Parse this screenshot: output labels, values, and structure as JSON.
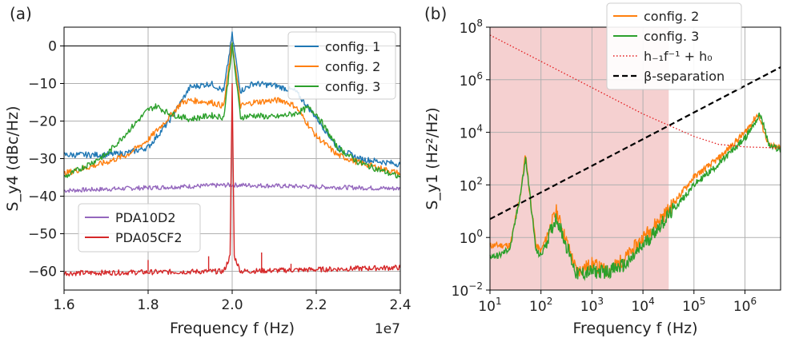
{
  "chart_data": [
    {
      "type": "line",
      "panel_label": "(a)",
      "xlabel": "Frequency f (Hz)",
      "x_offset_text": "1e7",
      "ylabel": "S_y4 (dBc/Hz)",
      "xlim": [
        1.6,
        2.4
      ],
      "ylim": [
        -65,
        5
      ],
      "x_ticks": [
        1.6,
        1.8,
        2.0,
        2.2,
        2.4
      ],
      "x_tick_labels": [
        "1.6",
        "1.8",
        "2.0",
        "2.2",
        "2.4"
      ],
      "y_ticks": [
        0,
        -10,
        -20,
        -30,
        -40,
        -50,
        -60
      ],
      "y_tick_labels": [
        "0",
        "−10",
        "−20",
        "−30",
        "−40",
        "−50",
        "−60"
      ],
      "grid": true,
      "legend_upper": {
        "placement": "top-right",
        "entries": [
          "config. 1",
          "config. 2",
          "config. 3"
        ]
      },
      "legend_lower": {
        "placement": "lower-left",
        "entries": [
          "PDA10D2",
          "PDA05CF2"
        ]
      },
      "colors": {
        "config1": "#1f77b4",
        "config2": "#ff7f0e",
        "config3": "#2ca02c",
        "PDA10D2": "#9467bd",
        "PDA05CF2": "#d62728"
      },
      "series": [
        {
          "name": "config. 1",
          "color": "#1f77b4",
          "x": [
            1.6,
            1.7,
            1.75,
            1.8,
            1.85,
            1.9,
            1.95,
            1.98,
            2.0,
            2.02,
            2.05,
            2.1,
            2.15,
            2.2,
            2.25,
            2.3,
            2.4
          ],
          "y": [
            -29,
            -29,
            -28.5,
            -27,
            -20,
            -11,
            -10,
            -12,
            3,
            -12,
            -10,
            -10.5,
            -12,
            -19,
            -27,
            -30,
            -31.5
          ]
        },
        {
          "name": "config. 2",
          "color": "#ff7f0e",
          "x": [
            1.6,
            1.7,
            1.75,
            1.8,
            1.85,
            1.88,
            1.9,
            1.95,
            1.98,
            2.0,
            2.02,
            2.05,
            2.1,
            2.12,
            2.15,
            2.2,
            2.25,
            2.3,
            2.4
          ],
          "y": [
            -34,
            -31,
            -29,
            -25,
            -19,
            -15,
            -14.5,
            -15,
            -16,
            1,
            -16,
            -15,
            -14.5,
            -14.5,
            -16,
            -24,
            -29,
            -31,
            -34
          ]
        },
        {
          "name": "config. 3",
          "color": "#2ca02c",
          "x": [
            1.6,
            1.7,
            1.75,
            1.8,
            1.82,
            1.85,
            1.9,
            1.95,
            1.98,
            2.0,
            2.02,
            2.05,
            2.1,
            2.15,
            2.18,
            2.2,
            2.25,
            2.3,
            2.4
          ],
          "y": [
            -35,
            -29,
            -23,
            -17,
            -16,
            -18,
            -19.5,
            -18.5,
            -19,
            0,
            -19,
            -18.5,
            -19,
            -18,
            -16.5,
            -18,
            -27,
            -31,
            -35
          ]
        },
        {
          "name": "PDA10D2",
          "color": "#9467bd",
          "x": [
            1.6,
            2.0,
            2.4
          ],
          "y": [
            -38.5,
            -37,
            -38
          ]
        },
        {
          "name": "PDA05CF2",
          "color": "#d62728",
          "x": [
            1.6,
            1.98,
            1.995,
            2.0,
            2.005,
            2.02,
            2.4
          ],
          "y": [
            -60.5,
            -60,
            -56,
            -10,
            -56,
            -60,
            -59
          ]
        }
      ],
      "red_spurs": [
        {
          "x": 1.8,
          "y": -57
        },
        {
          "x": 1.944,
          "y": -56
        },
        {
          "x": 2.07,
          "y": -55
        },
        {
          "x": 2.14,
          "y": -58
        }
      ]
    },
    {
      "type": "line",
      "panel_label": "(b)",
      "xlabel": "Frequency f (Hz)",
      "ylabel": "S_y1 (Hz²/Hz)",
      "xscale": "log",
      "yscale": "log",
      "xlim": [
        10,
        5000000
      ],
      "ylim": [
        0.01,
        100000000
      ],
      "x_ticks": [
        10,
        100,
        1000,
        10000,
        100000,
        1000000
      ],
      "x_tick_labels": [
        [
          "10",
          "1"
        ],
        [
          "10",
          "2"
        ],
        [
          "10",
          "3"
        ],
        [
          "10",
          "4"
        ],
        [
          "10",
          "5"
        ],
        [
          "10",
          "6"
        ]
      ],
      "y_ticks": [
        0.01,
        1,
        100,
        10000,
        1000000,
        100000000
      ],
      "y_tick_labels": [
        [
          "10",
          "−2"
        ],
        [
          "10",
          "0"
        ],
        [
          "10",
          "2"
        ],
        [
          "10",
          "4"
        ],
        [
          "10",
          "6"
        ],
        [
          "10",
          "8"
        ]
      ],
      "grid": true,
      "legend": {
        "placement": "top-center",
        "entries": [
          "config. 2",
          "config. 3",
          "h₋₁f⁻¹ + h₀",
          "β-separation"
        ]
      },
      "shaded_region": {
        "x": [
          10,
          32000
        ],
        "color": "#f3c4c4"
      },
      "series": [
        {
          "name": "config. 2",
          "color": "#ff7f0e",
          "x": [
            10,
            15,
            25,
            40,
            50,
            60,
            80,
            100,
            200,
            500,
            1000,
            2000,
            5000,
            10000,
            30000,
            100000,
            300000,
            1000000,
            1800000,
            3000000,
            5000000
          ],
          "y": [
            0.5,
            0.5,
            0.5,
            50,
            1500,
            50,
            0.5,
            0.3,
            10,
            0.05,
            0.1,
            0.05,
            0.2,
            1,
            10,
            200,
            1000,
            10000,
            50000,
            3000,
            2500
          ]
        },
        {
          "name": "config. 3",
          "color": "#2ca02c",
          "x": [
            10,
            15,
            25,
            40,
            50,
            60,
            80,
            100,
            200,
            500,
            1000,
            2000,
            5000,
            10000,
            30000,
            100000,
            300000,
            1000000,
            2000000,
            3000000,
            5000000
          ],
          "y": [
            0.2,
            0.2,
            0.4,
            50,
            1000,
            50,
            0.3,
            0.2,
            6,
            0.04,
            0.05,
            0.05,
            0.1,
            0.5,
            6,
            100,
            600,
            6000,
            50000,
            3000,
            2200
          ]
        },
        {
          "name": "h₋₁f⁻¹ + h₀",
          "color": "#e41a1c",
          "x": [
            10,
            100,
            1000,
            10000,
            100000,
            300000,
            1000000,
            3000000,
            5000000
          ],
          "y": [
            50000000,
            5000000,
            500000,
            50000,
            7000,
            3500,
            2800,
            2600,
            2500
          ]
        },
        {
          "name": "β-separation",
          "color": "#000000",
          "x": [
            10,
            5000000
          ],
          "y": [
            5,
            3000000
          ]
        }
      ]
    }
  ]
}
